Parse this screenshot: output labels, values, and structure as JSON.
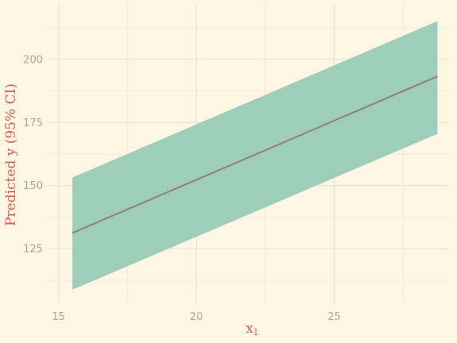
{
  "chart_data": {
    "type": "line",
    "title": "",
    "xlabel": "x1",
    "ylabel": "Predicted y (95% CI)",
    "xlim": [
      14.6,
      29.2
    ],
    "ylim": [
      103,
      222
    ],
    "x_ticks": [
      15,
      20,
      25
    ],
    "y_ticks": [
      125,
      150,
      175,
      200
    ],
    "grid": true,
    "series": [
      {
        "role": "fit",
        "x": [
          15.5,
          28.75
        ],
        "y": [
          131.2,
          193.3
        ],
        "ci_lower": [
          108.7,
          170.5
        ],
        "ci_upper": [
          153.2,
          215.2
        ]
      }
    ],
    "colors": {
      "ribbon": "#9fcdbb",
      "line": "#8f7f78",
      "axis_title": "#dc5a4e",
      "tick_label": "#a8a89a",
      "background": "#fdf6e3"
    }
  }
}
